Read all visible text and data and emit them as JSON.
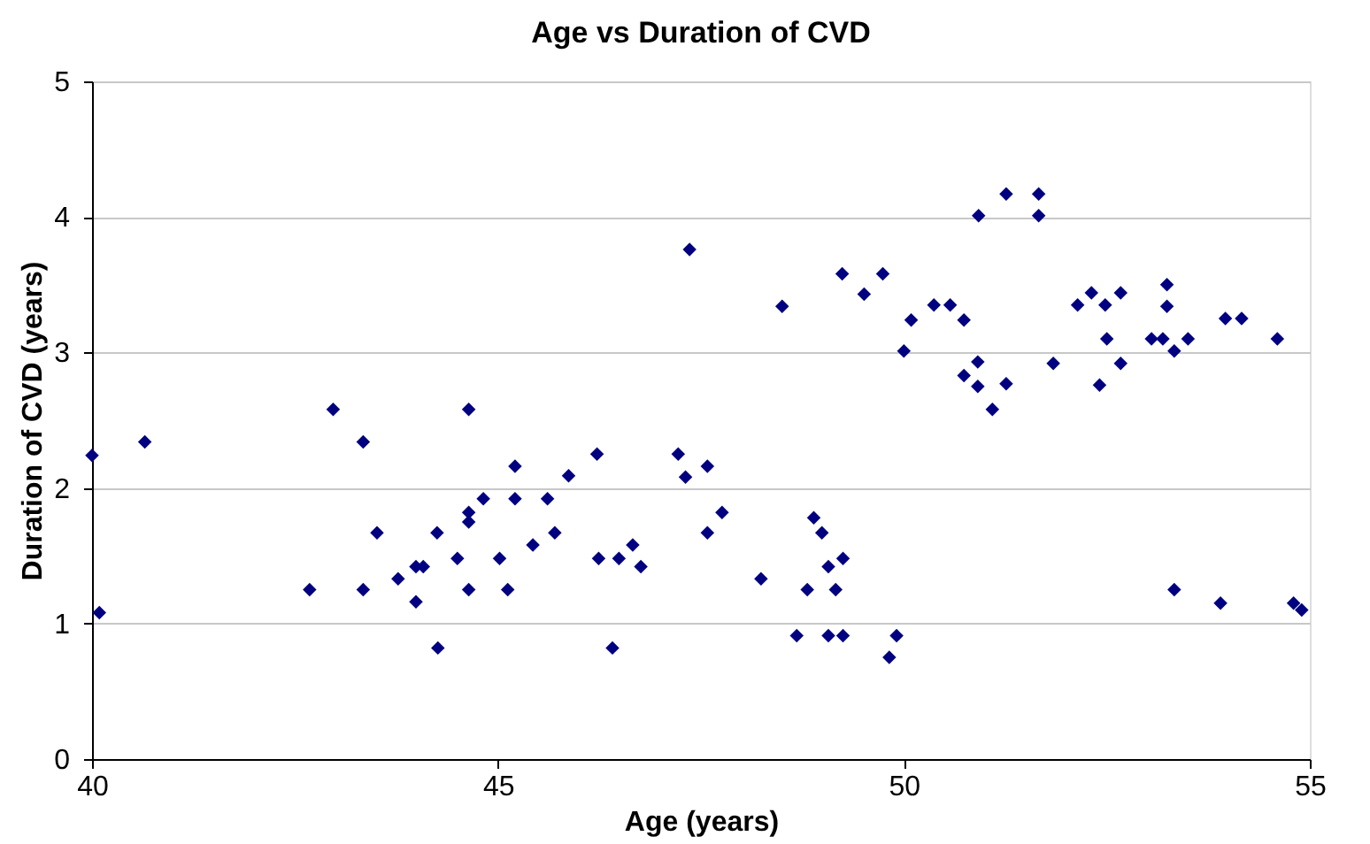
{
  "chart_data": {
    "type": "scatter",
    "title": "Age vs Duration of CVD",
    "xlabel": "Age (years)",
    "ylabel": "Duration of CVD (years)",
    "x": [
      40.0,
      40.09,
      40.65,
      42.68,
      42.97,
      43.34,
      43.34,
      43.51,
      43.77,
      43.99,
      44.08,
      43.99,
      44.25,
      44.26,
      44.5,
      44.64,
      44.64,
      44.64,
      44.64,
      44.82,
      45.02,
      45.12,
      45.21,
      45.21,
      45.43,
      45.61,
      45.7,
      45.87,
      46.22,
      46.24,
      46.41,
      46.49,
      46.66,
      46.76,
      47.22,
      47.31,
      47.36,
      47.58,
      47.58,
      47.76,
      48.24,
      48.5,
      48.68,
      48.81,
      48.89,
      48.99,
      49.07,
      49.25,
      49.16,
      49.07,
      49.25,
      49.82,
      49.91,
      50.0,
      50.09,
      49.24,
      49.51,
      49.74,
      50.37,
      50.57,
      50.74,
      50.74,
      50.91,
      50.91,
      51.09,
      51.26,
      50.92,
      51.26,
      51.66,
      51.66,
      51.84,
      52.14,
      52.31,
      52.48,
      52.67,
      52.5,
      52.67,
      52.41,
      53.24,
      53.24,
      53.05,
      53.19,
      53.33,
      53.5,
      53.96,
      54.16,
      54.6,
      53.33,
      53.9,
      54.8,
      54.9
    ],
    "series": [
      {
        "color": "#000080",
        "values": [
          2.24,
          1.08,
          2.34,
          1.25,
          2.58,
          2.34,
          1.25,
          1.67,
          1.33,
          1.42,
          1.42,
          1.16,
          1.67,
          0.82,
          1.48,
          2.58,
          1.82,
          1.75,
          1.25,
          1.92,
          1.48,
          1.25,
          2.16,
          1.92,
          1.58,
          1.92,
          1.67,
          2.09,
          2.25,
          1.48,
          0.82,
          1.48,
          1.58,
          1.42,
          2.25,
          2.08,
          3.76,
          2.16,
          1.67,
          1.82,
          1.33,
          3.34,
          0.91,
          1.25,
          1.78,
          1.67,
          1.42,
          1.48,
          1.25,
          0.91,
          0.91,
          0.75,
          0.91,
          3.01,
          3.24,
          3.58,
          3.43,
          3.58,
          3.35,
          3.35,
          3.24,
          2.83,
          2.93,
          2.75,
          2.58,
          2.77,
          4.01,
          4.17,
          4.17,
          4.01,
          2.92,
          3.35,
          3.44,
          3.35,
          3.44,
          3.1,
          2.92,
          2.76,
          3.5,
          3.34,
          3.1,
          3.1,
          3.01,
          3.1,
          3.25,
          3.25,
          3.1,
          1.25,
          1.15,
          1.15,
          1.1
        ]
      }
    ],
    "xlim": [
      40,
      55
    ],
    "xticks": [
      40,
      45,
      50,
      55
    ],
    "ylim": [
      0,
      5
    ],
    "yticks": [
      0,
      1,
      2,
      3,
      4,
      5
    ],
    "grid": "y",
    "marker": "diamond",
    "legend": false
  }
}
